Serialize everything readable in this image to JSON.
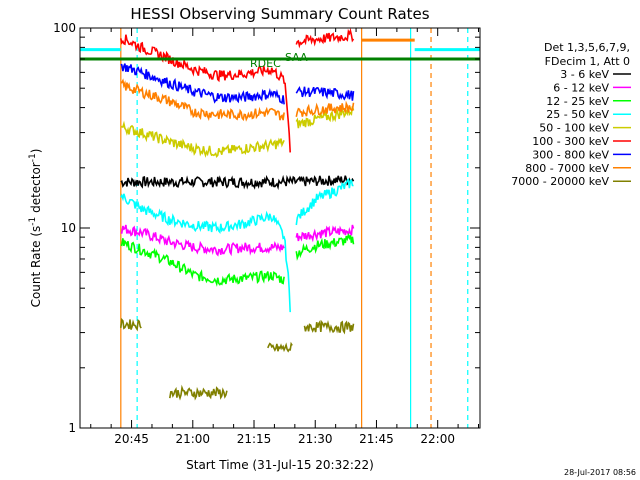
{
  "chart_data": {
    "type": "line",
    "title": "HESSI Observing Summary Count Rates",
    "xlabel": "Start Time (31-Jul-15 20:32:22)",
    "ylabel": "Count Rate (s⁻¹ detector⁻¹)",
    "ylabel_main": "Count Rate (s",
    "ylabel_sup1": "-1",
    "ylabel_mid": " detector",
    "ylabel_sup2": "-1",
    "ylabel_end": ")",
    "yscale": "log",
    "ylim": [
      1,
      100
    ],
    "xlim_minutes_after_start": [
      0,
      98
    ],
    "x_ticks": [
      "20:45",
      "21:00",
      "21:15",
      "21:30",
      "21:45",
      "22:00"
    ],
    "y_ticks": [
      "1",
      "10",
      "100"
    ],
    "grid": false,
    "legend_placement": "right",
    "legend_header": [
      "Det 1,3,5,6,7,9,",
      "FDecim 1, Att 0"
    ],
    "flag_labels": [
      "RDEC",
      "SAA"
    ],
    "timestamp": "28-Jul-2017 08:56",
    "colors": {
      "axis": "#000000",
      "black": "#000000",
      "magenta": "#ff00ff",
      "green": "#00ff00",
      "cyan": "#00ffff",
      "yellow": "#cccc00",
      "red": "#ff0000",
      "blue": "#0000ff",
      "orange": "#ff8000",
      "olive": "#808000",
      "darkgreen": "#008000"
    },
    "series": [
      {
        "name": "3 - 6 keV",
        "color": "#000000",
        "segments": [
          {
            "x": [
              10,
              22,
              34,
              47,
              53,
              67
            ],
            "y": [
              17,
              17,
              17,
              17,
              17,
              17.5
            ]
          }
        ]
      },
      {
        "name": "6 - 12 keV",
        "color": "#ff00ff",
        "segments": [
          {
            "x": [
              10,
              15,
              22,
              28,
              34,
              40,
              47,
              50
            ],
            "y": [
              10,
              9.5,
              8.5,
              8,
              7.8,
              8,
              8,
              8
            ]
          },
          {
            "x": [
              53,
              58,
              63,
              67
            ],
            "y": [
              9,
              9.4,
              9.6,
              9.8
            ]
          }
        ]
      },
      {
        "name": "12 - 25 keV",
        "color": "#00ff00",
        "segments": [
          {
            "x": [
              10,
              15,
              22,
              28,
              34,
              40,
              47,
              50
            ],
            "y": [
              8.5,
              7.8,
              6.8,
              5.8,
              5.5,
              5.6,
              5.8,
              5.5
            ]
          },
          {
            "x": [
              53,
              58,
              63,
              67
            ],
            "y": [
              7.5,
              8.2,
              8.5,
              8.8
            ]
          }
        ]
      },
      {
        "name": "25 - 50 keV",
        "color": "#00ffff",
        "segments": [
          {
            "x": [
              10,
              15,
              22,
              28,
              34,
              40,
              47,
              50,
              51.5
            ],
            "y": [
              14.5,
              12.5,
              11,
              10.3,
              10,
              10.5,
              11.5,
              9,
              4
            ]
          },
          {
            "x": [
              53,
              58,
              63,
              67
            ],
            "y": [
              11,
              14,
              15.5,
              17
            ]
          }
        ]
      },
      {
        "name": "50 - 100 keV",
        "color": "#cccc00",
        "segments": [
          {
            "x": [
              10,
              15,
              22,
              28,
              34,
              40,
              47,
              50
            ],
            "y": [
              32,
              30,
              27,
              25,
              24,
              25,
              26,
              27
            ]
          },
          {
            "x": [
              53,
              58,
              63,
              67
            ],
            "y": [
              33,
              35,
              37,
              39
            ]
          }
        ]
      },
      {
        "name": "100 - 300 keV",
        "color": "#ff0000",
        "segments": [
          {
            "x": [
              10,
              15,
              22,
              28,
              34,
              40,
              47,
              50,
              51.5
            ],
            "y": [
              90,
              80,
              70,
              62,
              58,
              59,
              62,
              55,
              25
            ]
          },
          {
            "x": [
              53,
              58,
              63,
              67
            ],
            "y": [
              85,
              88,
              90,
              92
            ]
          }
        ]
      },
      {
        "name": "300 - 800 keV",
        "color": "#0000ff",
        "segments": [
          {
            "x": [
              10,
              15,
              22,
              28,
              34,
              40,
              47,
              50
            ],
            "y": [
              65,
              60,
              53,
              48,
              45,
              45,
              47,
              44
            ]
          },
          {
            "x": [
              53,
              58,
              63,
              67
            ],
            "y": [
              48,
              48,
              47,
              46
            ]
          }
        ]
      },
      {
        "name": "800 - 7000 keV",
        "color": "#ff8000",
        "segments": [
          {
            "x": [
              10,
              15,
              22,
              28,
              34,
              40,
              47,
              50
            ],
            "y": [
              52,
              48,
              43,
              38,
              37,
              37,
              38,
              36
            ]
          },
          {
            "x": [
              53,
              58,
              63,
              67
            ],
            "y": [
              38,
              39,
              40,
              40
            ]
          }
        ]
      },
      {
        "name": "7000 - 20000 keV",
        "color": "#808000",
        "segments": [
          {
            "x": [
              10,
              15
            ],
            "y": [
              3.3,
              3.3
            ]
          },
          {
            "x": [
              22,
              30,
              36
            ],
            "y": [
              1.5,
              1.5,
              1.5
            ]
          },
          {
            "x": [
              46,
              52
            ],
            "y": [
              2.5,
              2.5
            ]
          },
          {
            "x": [
              55,
              67
            ],
            "y": [
              3.2,
              3.2
            ]
          }
        ]
      }
    ],
    "flags": [
      {
        "name": "cyan flag",
        "color": "#00ffff",
        "segments": [
          {
            "x": [
              0,
              10
            ],
            "y": [
              78,
              78
            ]
          },
          {
            "x": [
              82,
              98
            ],
            "y": [
              78,
              78
            ]
          }
        ]
      },
      {
        "name": "orange flag",
        "color": "#ff8000",
        "segments": [
          {
            "x": [
              69,
              82
            ],
            "y": [
              87,
              87
            ]
          }
        ]
      },
      {
        "name": "RDEC flag",
        "color": "#008000",
        "segments": [
          {
            "x": [
              0,
              98
            ],
            "y": [
              70,
              70
            ]
          }
        ]
      }
    ],
    "vlines": [
      {
        "x": 10,
        "color": "#ff8000",
        "style": "solid"
      },
      {
        "x": 14,
        "color": "#00ffff",
        "style": "dashed"
      },
      {
        "x": 69,
        "color": "#ff8000",
        "style": "solid"
      },
      {
        "x": 81,
        "color": "#00ffff",
        "style": "solid"
      },
      {
        "x": 86,
        "color": "#ff8000",
        "style": "dashed"
      },
      {
        "x": 95,
        "color": "#00ffff",
        "style": "dashed"
      }
    ]
  }
}
